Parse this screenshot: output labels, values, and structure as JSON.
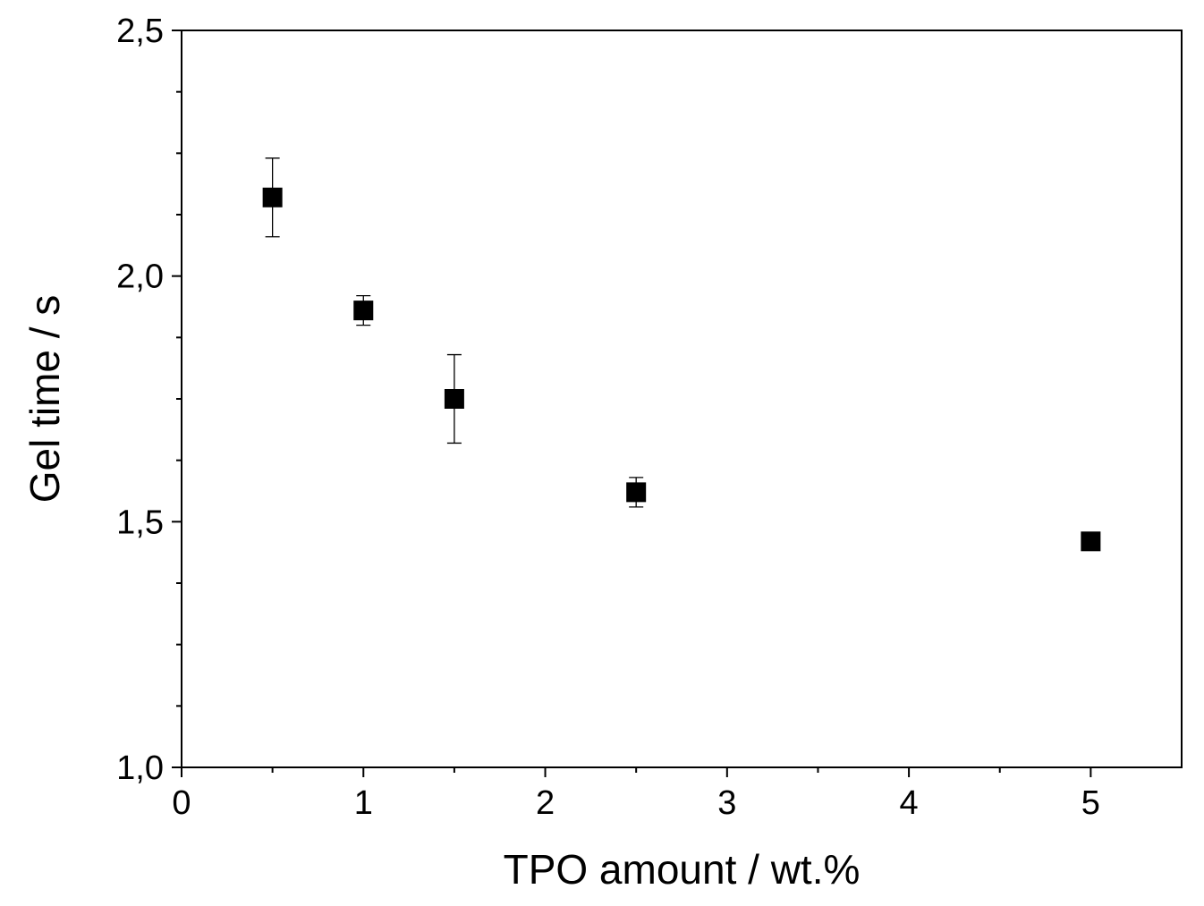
{
  "chart_data": {
    "type": "scatter",
    "title": "",
    "xlabel": "TPO amount / wt.%",
    "ylabel": "Gel time / s",
    "xlim": [
      0,
      5.5
    ],
    "ylim": [
      1.0,
      2.5
    ],
    "x_ticks": [
      {
        "value": 0,
        "label": "0"
      },
      {
        "value": 1,
        "label": "1"
      },
      {
        "value": 2,
        "label": "2"
      },
      {
        "value": 3,
        "label": "3"
      },
      {
        "value": 4,
        "label": "4"
      },
      {
        "value": 5,
        "label": "5"
      }
    ],
    "x_minor_ticks": [
      0.5,
      1.5,
      2.5,
      3.5,
      4.5
    ],
    "y_ticks": [
      {
        "value": 1.0,
        "label": "1,0"
      },
      {
        "value": 1.5,
        "label": "1,5"
      },
      {
        "value": 2.0,
        "label": "2,0"
      },
      {
        "value": 2.5,
        "label": "2,5"
      }
    ],
    "y_minor_ticks": [
      1.125,
      1.25,
      1.375,
      1.625,
      1.75,
      1.875,
      2.125,
      2.25,
      2.375
    ],
    "grid": false,
    "legend": "none",
    "marker": "square",
    "marker_color": "#000000",
    "series": [
      {
        "points": [
          {
            "x": 0.5,
            "y": 2.16,
            "err": 0.08
          },
          {
            "x": 1.0,
            "y": 1.93,
            "err": 0.03
          },
          {
            "x": 1.5,
            "y": 1.75,
            "err": 0.09
          },
          {
            "x": 2.5,
            "y": 1.56,
            "err": 0.03
          },
          {
            "x": 5.0,
            "y": 1.46,
            "err": 0.01
          }
        ]
      }
    ]
  }
}
